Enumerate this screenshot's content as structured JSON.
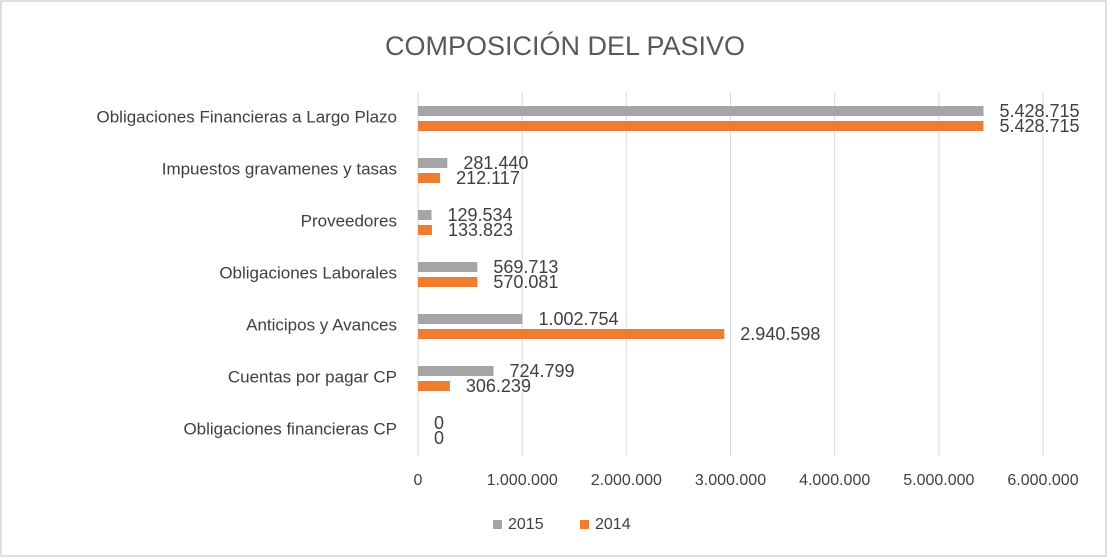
{
  "chart_data": {
    "type": "bar",
    "orientation": "horizontal",
    "title": "COMPOSICIÓN DEL PASIVO",
    "categories": [
      "Obligaciones Financieras a Largo Plazo",
      "Impuestos gravamenes y tasas",
      "Proveedores",
      "Obligaciones Laborales",
      "Anticipos y Avances",
      "Cuentas por pagar CP",
      "Obligaciones financieras CP"
    ],
    "series": [
      {
        "name": "2015",
        "color": "#a5a5a5",
        "values": [
          5428715,
          281440,
          129534,
          569713,
          1002754,
          724799,
          0
        ],
        "value_labels": [
          "5.428.715",
          "281.440",
          "129.534",
          "569.713",
          "1.002.754",
          "724.799",
          "0"
        ]
      },
      {
        "name": "2014",
        "color": "#ed7d31",
        "values": [
          5428715,
          212117,
          133823,
          570081,
          2940598,
          306239,
          0
        ],
        "value_labels": [
          "5.428.715",
          "212.117",
          "133.823",
          "570.081",
          "2.940.598",
          "306.239",
          "0"
        ]
      }
    ],
    "xlim": [
      0,
      6000000
    ],
    "xticks": [
      0,
      {
        "value": 1000000,
        "label": "1.000.000"
      },
      {
        "value": 2000000,
        "label": "2.000.000"
      },
      {
        "value": 3000000,
        "label": "3.000.000"
      },
      {
        "value": 4000000,
        "label": "4.000.000"
      },
      {
        "value": 5000000,
        "label": "5.000.000"
      },
      {
        "value": 6000000,
        "label": "6.000.000"
      }
    ],
    "grid": true,
    "legend": "bottom"
  }
}
